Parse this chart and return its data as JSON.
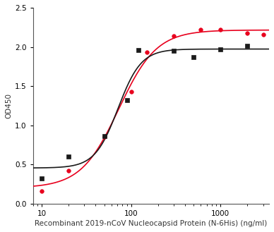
{
  "title": "",
  "xlabel": "Recombinant 2019-nCoV Nucleocapsid Protein (N-6His) (ng/ml)",
  "ylabel": "OD450",
  "xlim": [
    8,
    3500
  ],
  "ylim": [
    0.0,
    2.5
  ],
  "yticks": [
    0.0,
    0.5,
    1.0,
    1.5,
    2.0,
    2.5
  ],
  "xticks": [
    10,
    100,
    1000
  ],
  "background_color": "#ffffff",
  "red_x": [
    10,
    20,
    50,
    100,
    150,
    300,
    600,
    1000,
    2000,
    3000
  ],
  "red_y": [
    0.16,
    0.42,
    0.85,
    1.43,
    1.93,
    2.14,
    2.22,
    2.22,
    2.18,
    2.16
  ],
  "black_x": [
    10,
    20,
    50,
    90,
    120,
    300,
    500,
    1000,
    2000
  ],
  "black_y": [
    0.32,
    0.6,
    0.86,
    1.32,
    1.96,
    1.95,
    1.87,
    1.97,
    2.01
  ],
  "red_color": "#e8001d",
  "black_color": "#1a1a1a",
  "red_marker": "o",
  "black_marker": "s",
  "marker_size": 4,
  "line_width": 1.2,
  "font_size_label": 7.5,
  "font_size_tick": 7.5
}
